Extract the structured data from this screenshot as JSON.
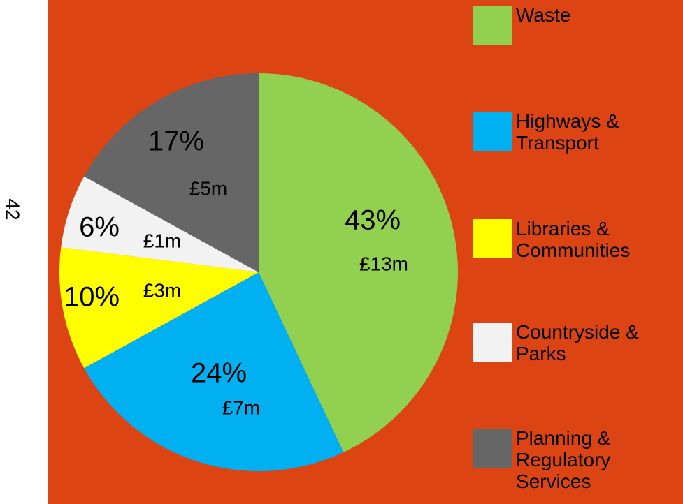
{
  "page_number": "42",
  "chart_data": {
    "type": "pie",
    "categories": [
      "Waste",
      "Highways & Transport",
      "Libraries & Communities",
      "Countryside & Parks",
      "Planning & Regulatory Services"
    ],
    "values": [
      43,
      24,
      10,
      6,
      17
    ],
    "value_labels": [
      "43%",
      "24%",
      "10%",
      "6%",
      "17%"
    ],
    "amounts": {
      "values": [
        13,
        7,
        3,
        1,
        5
      ],
      "value_labels": [
        "£13m",
        "£7m",
        "£3m",
        "£1m",
        "£5m"
      ]
    },
    "colors": [
      "#92d050",
      "#00b0f0",
      "#ffff00",
      "#f2f2f2",
      "#666666"
    ],
    "legend": "right"
  }
}
